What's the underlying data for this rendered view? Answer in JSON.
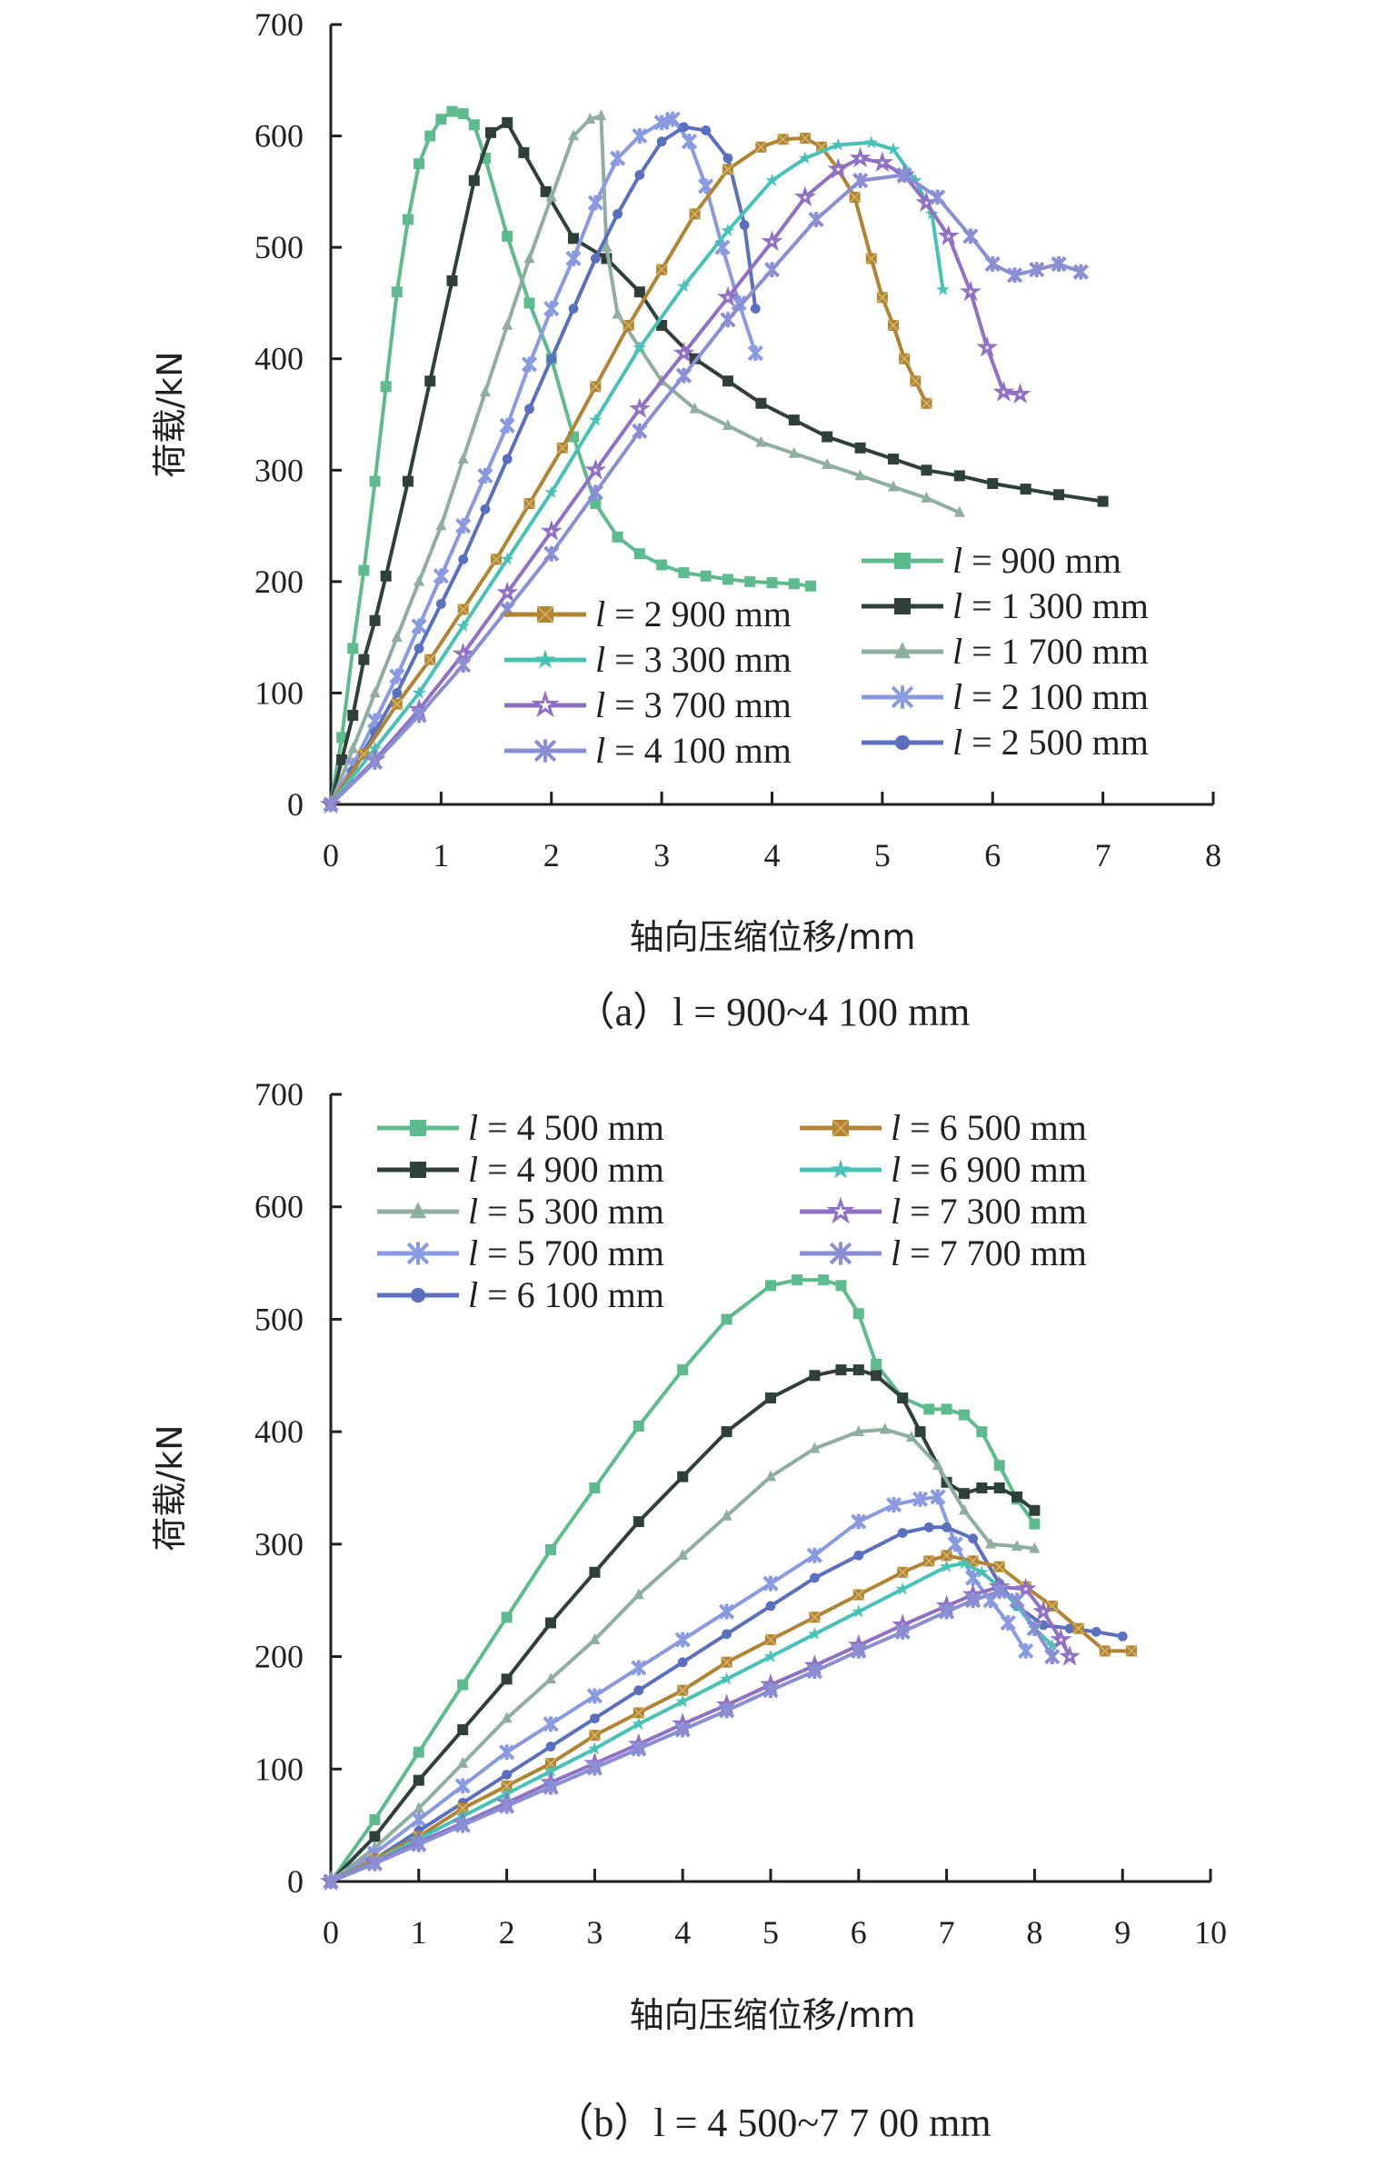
{
  "chart_data": [
    {
      "type": "line",
      "panel": "a",
      "caption": "（a）l = 900~4 100 mm",
      "xlabel": "轴向压缩位移/mm",
      "ylabel": "荷载/kN",
      "xlim": [
        0,
        8
      ],
      "ylim": [
        0,
        700
      ],
      "xticks": [
        "0",
        "1",
        "2",
        "3",
        "4",
        "5",
        "6",
        "7",
        "8"
      ],
      "yticks": [
        "0",
        "100",
        "200",
        "300",
        "400",
        "500",
        "600",
        "700"
      ],
      "grid": false,
      "legend_position": "bottom-right",
      "series": [
        {
          "name": "l = 900 mm",
          "color": "#5dbb8e",
          "marker": "square",
          "x": [
            0,
            0.1,
            0.2,
            0.3,
            0.4,
            0.5,
            0.6,
            0.7,
            0.8,
            0.9,
            1.0,
            1.1,
            1.2,
            1.3,
            1.4,
            1.6,
            1.8,
            2.0,
            2.2,
            2.4,
            2.6,
            2.8,
            3.0,
            3.2,
            3.4,
            3.6,
            3.8,
            4.0,
            4.2,
            4.35
          ],
          "y": [
            0,
            60,
            140,
            210,
            290,
            375,
            460,
            525,
            575,
            600,
            615,
            622,
            620,
            610,
            580,
            510,
            450,
            400,
            330,
            270,
            240,
            225,
            215,
            208,
            205,
            202,
            200,
            199,
            198,
            196
          ]
        },
        {
          "name": "l = 1 300 mm",
          "color": "#2f403b",
          "marker": "square",
          "x": [
            0,
            0.1,
            0.2,
            0.3,
            0.4,
            0.5,
            0.7,
            0.9,
            1.1,
            1.3,
            1.45,
            1.6,
            1.75,
            1.95,
            2.2,
            2.5,
            2.8,
            3.0,
            3.3,
            3.6,
            3.9,
            4.2,
            4.5,
            4.8,
            5.1,
            5.4,
            5.7,
            6.0,
            6.3,
            6.6,
            7.0
          ],
          "y": [
            0,
            40,
            80,
            130,
            165,
            205,
            290,
            380,
            470,
            560,
            603,
            612,
            585,
            550,
            508,
            490,
            460,
            430,
            400,
            380,
            360,
            345,
            330,
            320,
            310,
            300,
            295,
            288,
            283,
            278,
            272
          ]
        },
        {
          "name": "l = 1 700 mm",
          "color": "#8fae9f",
          "marker": "triangle",
          "x": [
            0,
            0.2,
            0.4,
            0.6,
            0.8,
            1.0,
            1.2,
            1.4,
            1.6,
            1.8,
            2.0,
            2.2,
            2.35,
            2.45,
            2.5,
            2.6,
            2.8,
            3.0,
            3.3,
            3.6,
            3.9,
            4.2,
            4.5,
            4.8,
            5.1,
            5.4,
            5.7
          ],
          "y": [
            0,
            50,
            100,
            150,
            200,
            250,
            310,
            370,
            430,
            490,
            545,
            600,
            615,
            618,
            500,
            440,
            410,
            380,
            355,
            340,
            325,
            315,
            305,
            295,
            285,
            275,
            262
          ]
        },
        {
          "name": "l = 2 100 mm",
          "color": "#8a9ae0",
          "marker": "asterisk",
          "x": [
            0,
            0.2,
            0.4,
            0.6,
            0.8,
            1.0,
            1.2,
            1.4,
            1.6,
            1.8,
            2.0,
            2.2,
            2.4,
            2.6,
            2.8,
            3.0,
            3.1,
            3.25,
            3.4,
            3.55,
            3.7,
            3.85
          ],
          "y": [
            0,
            35,
            75,
            115,
            160,
            205,
            250,
            295,
            340,
            395,
            445,
            490,
            540,
            580,
            600,
            612,
            615,
            595,
            555,
            500,
            450,
            405
          ]
        },
        {
          "name": "l = 2 500 mm",
          "color": "#5b6fbf",
          "marker": "circle",
          "x": [
            0,
            0.2,
            0.4,
            0.6,
            0.8,
            1.0,
            1.2,
            1.4,
            1.6,
            1.8,
            2.0,
            2.2,
            2.4,
            2.6,
            2.8,
            3.0,
            3.2,
            3.4,
            3.6,
            3.75,
            3.85
          ],
          "y": [
            0,
            30,
            65,
            100,
            140,
            180,
            220,
            265,
            310,
            355,
            400,
            445,
            490,
            530,
            565,
            595,
            608,
            605,
            580,
            520,
            445
          ]
        },
        {
          "name": "l = 2 900 mm",
          "color": "#b08433",
          "marker": "square-x",
          "x": [
            0,
            0.3,
            0.6,
            0.9,
            1.2,
            1.5,
            1.8,
            2.1,
            2.4,
            2.7,
            3.0,
            3.3,
            3.6,
            3.9,
            4.1,
            4.3,
            4.45,
            4.6,
            4.75,
            4.9,
            5.0,
            5.1,
            5.2,
            5.3,
            5.4
          ],
          "y": [
            0,
            45,
            90,
            130,
            175,
            220,
            270,
            320,
            375,
            430,
            480,
            530,
            570,
            590,
            597,
            598,
            590,
            570,
            545,
            490,
            455,
            430,
            400,
            380,
            360
          ]
        },
        {
          "name": "l = 3 300 mm",
          "color": "#48c2b6",
          "marker": "star",
          "x": [
            0,
            0.4,
            0.8,
            1.2,
            1.6,
            2.0,
            2.4,
            2.8,
            3.2,
            3.6,
            4.0,
            4.3,
            4.6,
            4.9,
            5.1,
            5.3,
            5.45,
            5.55
          ],
          "y": [
            0,
            50,
            100,
            160,
            220,
            280,
            345,
            410,
            465,
            515,
            560,
            580,
            592,
            594,
            588,
            560,
            530,
            462
          ]
        },
        {
          "name": "l = 3 700 mm",
          "color": "#9070c4",
          "marker": "star-outline",
          "x": [
            0,
            0.4,
            0.8,
            1.2,
            1.6,
            2.0,
            2.4,
            2.8,
            3.2,
            3.6,
            4.0,
            4.3,
            4.6,
            4.8,
            5.0,
            5.2,
            5.4,
            5.6,
            5.8,
            5.95,
            6.1,
            6.25
          ],
          "y": [
            0,
            40,
            85,
            135,
            190,
            245,
            300,
            355,
            405,
            455,
            505,
            545,
            570,
            580,
            576,
            565,
            540,
            510,
            460,
            410,
            370,
            368
          ]
        },
        {
          "name": "l = 4 100 mm",
          "color": "#8a8fd4",
          "marker": "asterisk",
          "x": [
            0,
            0.4,
            0.8,
            1.2,
            1.6,
            2.0,
            2.4,
            2.8,
            3.2,
            3.6,
            4.0,
            4.4,
            4.8,
            5.2,
            5.5,
            5.8,
            6.0,
            6.2,
            6.4,
            6.6,
            6.8
          ],
          "y": [
            0,
            38,
            80,
            125,
            175,
            225,
            280,
            335,
            385,
            435,
            480,
            525,
            560,
            565,
            545,
            510,
            485,
            475,
            480,
            485,
            478
          ]
        }
      ],
      "legend_left": [
        "l = 2 900 mm",
        "l = 3 300 mm",
        "l = 3 700 mm",
        "l = 4 100 mm"
      ],
      "legend_right": [
        "l = 900 mm",
        "l = 1 300 mm",
        "l = 1 700 mm",
        "l = 2 100 mm",
        "l = 2 500 mm"
      ]
    },
    {
      "type": "line",
      "panel": "b",
      "caption": "（b）l = 4 500~7 7 00 mm",
      "xlabel": "轴向压缩位移/mm",
      "ylabel": "荷载/kN",
      "xlim": [
        0,
        10
      ],
      "ylim": [
        0,
        700
      ],
      "xticks": [
        "0",
        "1",
        "2",
        "3",
        "4",
        "5",
        "6",
        "7",
        "8",
        "9",
        "10"
      ],
      "yticks": [
        "0",
        "100",
        "200",
        "300",
        "400",
        "500",
        "600",
        "700"
      ],
      "grid": false,
      "legend_position": "top-left",
      "series": [
        {
          "name": "l = 4 500 mm",
          "color": "#5dbb8e",
          "marker": "square",
          "x": [
            0,
            0.5,
            1.0,
            1.5,
            2.0,
            2.5,
            3.0,
            3.5,
            4.0,
            4.5,
            5.0,
            5.3,
            5.6,
            5.8,
            6.0,
            6.2,
            6.5,
            6.8,
            7.0,
            7.2,
            7.4,
            7.6,
            7.8,
            8.0
          ],
          "y": [
            0,
            55,
            115,
            175,
            235,
            295,
            350,
            405,
            455,
            500,
            530,
            535,
            535,
            530,
            505,
            460,
            430,
            420,
            420,
            415,
            400,
            370,
            340,
            318
          ]
        },
        {
          "name": "l = 4 900 mm",
          "color": "#2f403b",
          "marker": "square",
          "x": [
            0,
            0.5,
            1.0,
            1.5,
            2.0,
            2.5,
            3.0,
            3.5,
            4.0,
            4.5,
            5.0,
            5.5,
            5.8,
            6.0,
            6.2,
            6.5,
            6.7,
            7.0,
            7.2,
            7.4,
            7.6,
            7.8,
            8.0
          ],
          "y": [
            0,
            40,
            90,
            135,
            180,
            230,
            275,
            320,
            360,
            400,
            430,
            450,
            455,
            455,
            450,
            430,
            400,
            355,
            345,
            350,
            350,
            342,
            330
          ]
        },
        {
          "name": "l = 5 300 mm",
          "color": "#8fae9f",
          "marker": "triangle",
          "x": [
            0,
            0.5,
            1.0,
            1.5,
            2.0,
            2.5,
            3.0,
            3.5,
            4.0,
            4.5,
            5.0,
            5.5,
            6.0,
            6.3,
            6.6,
            6.9,
            7.2,
            7.5,
            7.8,
            8.0
          ],
          "y": [
            0,
            30,
            65,
            105,
            145,
            180,
            215,
            255,
            290,
            325,
            360,
            385,
            400,
            402,
            395,
            370,
            330,
            300,
            298,
            296
          ]
        },
        {
          "name": "l = 5 700 mm",
          "color": "#8a9ae0",
          "marker": "asterisk",
          "x": [
            0,
            0.5,
            1.0,
            1.5,
            2.0,
            2.5,
            3.0,
            3.5,
            4.0,
            4.5,
            5.0,
            5.5,
            6.0,
            6.4,
            6.7,
            6.9,
            7.1,
            7.3,
            7.5,
            7.7,
            7.9
          ],
          "y": [
            0,
            25,
            55,
            85,
            115,
            140,
            165,
            190,
            215,
            240,
            265,
            290,
            320,
            335,
            340,
            342,
            300,
            270,
            250,
            230,
            205
          ]
        },
        {
          "name": "l = 6 100 mm",
          "color": "#5b6fbf",
          "marker": "circle",
          "x": [
            0,
            0.5,
            1.0,
            1.5,
            2.0,
            2.5,
            3.0,
            3.5,
            4.0,
            4.5,
            5.0,
            5.5,
            6.0,
            6.5,
            6.8,
            7.0,
            7.3,
            7.6,
            7.8,
            8.1,
            8.4,
            8.7,
            9.0
          ],
          "y": [
            0,
            20,
            45,
            70,
            95,
            120,
            145,
            170,
            195,
            220,
            245,
            270,
            290,
            310,
            315,
            315,
            305,
            265,
            245,
            228,
            225,
            222,
            218
          ]
        },
        {
          "name": "l = 6 500 mm",
          "color": "#b08433",
          "marker": "square-x",
          "x": [
            0,
            0.5,
            1.0,
            1.5,
            2.0,
            2.5,
            3.0,
            3.5,
            4.0,
            4.5,
            5.0,
            5.5,
            6.0,
            6.5,
            6.8,
            7.0,
            7.3,
            7.6,
            7.9,
            8.2,
            8.5,
            8.8,
            9.1
          ],
          "y": [
            0,
            20,
            40,
            65,
            85,
            105,
            130,
            150,
            170,
            195,
            215,
            235,
            255,
            275,
            285,
            290,
            285,
            280,
            262,
            245,
            225,
            205,
            205
          ]
        },
        {
          "name": "l = 6 900 mm",
          "color": "#48c2b6",
          "marker": "star",
          "x": [
            0,
            0.5,
            1.0,
            1.5,
            2.0,
            2.5,
            3.0,
            3.5,
            4.0,
            4.5,
            5.0,
            5.5,
            6.0,
            6.5,
            7.0,
            7.2,
            7.4,
            7.6,
            7.8,
            8.0,
            8.2
          ],
          "y": [
            0,
            18,
            38,
            58,
            78,
            98,
            118,
            140,
            160,
            180,
            200,
            220,
            240,
            260,
            280,
            283,
            275,
            262,
            245,
            225,
            210
          ]
        },
        {
          "name": "l = 7 300 mm",
          "color": "#9070c4",
          "marker": "star-outline",
          "x": [
            0,
            0.5,
            1.0,
            1.5,
            2.0,
            2.5,
            3.0,
            3.5,
            4.0,
            4.5,
            5.0,
            5.5,
            6.0,
            6.5,
            7.0,
            7.3,
            7.6,
            7.9,
            8.1,
            8.3,
            8.4
          ],
          "y": [
            0,
            17,
            35,
            52,
            70,
            88,
            105,
            122,
            140,
            157,
            175,
            192,
            210,
            228,
            245,
            255,
            262,
            260,
            240,
            215,
            200
          ]
        },
        {
          "name": "l = 7 700 mm",
          "color": "#8a8fd4",
          "marker": "asterisk",
          "x": [
            0,
            0.5,
            1.0,
            1.5,
            2.0,
            2.5,
            3.0,
            3.5,
            4.0,
            4.5,
            5.0,
            5.5,
            6.0,
            6.5,
            7.0,
            7.3,
            7.6,
            7.8,
            8.0,
            8.2
          ],
          "y": [
            0,
            16,
            33,
            50,
            67,
            84,
            101,
            118,
            135,
            152,
            170,
            187,
            205,
            222,
            240,
            250,
            258,
            250,
            225,
            200
          ]
        }
      ],
      "legend_left": [
        "l = 4 500 mm",
        "l = 4 900 mm",
        "l = 5 300 mm",
        "l = 5 700 mm",
        "l = 6 100 mm"
      ],
      "legend_right": [
        "l = 6 500 mm",
        "l = 6 900 mm",
        "l = 7 300 mm",
        "l = 7 700 mm"
      ]
    }
  ]
}
